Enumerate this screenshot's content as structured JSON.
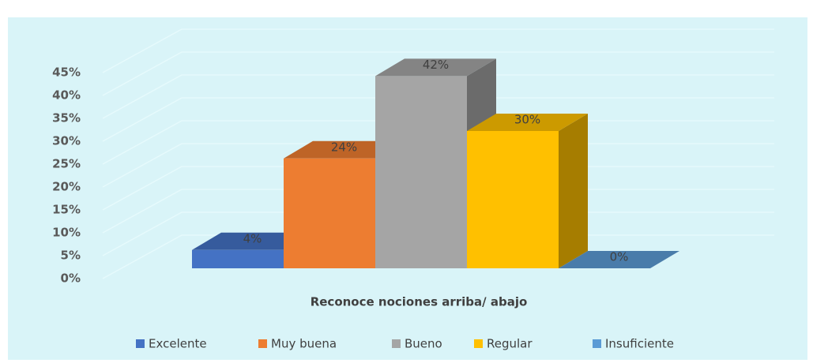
{
  "chart_data": {
    "type": "bar3d",
    "categories": [
      "Reconoce nociones arriba/ abajo"
    ],
    "series": [
      {
        "name": "Excelente",
        "color": "#4472c4",
        "values": [
          4
        ],
        "value_labels": [
          "4%"
        ]
      },
      {
        "name": "Muy buena",
        "color": "#ed7d31",
        "values": [
          24
        ],
        "value_labels": [
          "24%"
        ]
      },
      {
        "name": "Bueno",
        "color": "#a5a5a5",
        "values": [
          42
        ],
        "value_labels": [
          "42%"
        ]
      },
      {
        "name": "Regular",
        "color": "#ffc000",
        "values": [
          30
        ],
        "value_labels": [
          "30%"
        ]
      },
      {
        "name": "Insuficiente",
        "color": "#5b9bd5",
        "values": [
          0
        ],
        "value_labels": [
          "0%"
        ]
      }
    ],
    "ylim": [
      0,
      45
    ],
    "yticks": [
      {
        "value": 0,
        "label": "0%"
      },
      {
        "value": 5,
        "label": "5%"
      },
      {
        "value": 10,
        "label": "10%"
      },
      {
        "value": 15,
        "label": "15%"
      },
      {
        "value": 20,
        "label": "20%"
      },
      {
        "value": 25,
        "label": "25%"
      },
      {
        "value": 30,
        "label": "30%"
      },
      {
        "value": 35,
        "label": "35%"
      },
      {
        "value": 40,
        "label": "40%"
      },
      {
        "value": 45,
        "label": "45%"
      }
    ],
    "grid": true,
    "legend": "bottom"
  }
}
